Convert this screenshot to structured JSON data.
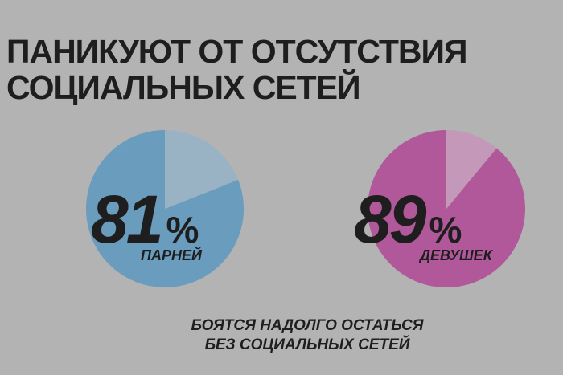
{
  "title": [
    "ПАНИКУЮТ ОТ ОТСУТСТВИЯ",
    "СОЦИАЛЬНЫХ СЕТЕЙ"
  ],
  "caption": [
    "БОЯТСЯ НАДОЛГО ОСТАТЬСЯ",
    "БЕЗ СОЦИАЛЬНЫХ СЕТЕЙ"
  ],
  "chart_data": [
    {
      "type": "pie",
      "label": "ПАРНЕЙ",
      "values": [
        81,
        19
      ],
      "value_labels": [
        "81%",
        null
      ],
      "colors": [
        "#6a9cbd",
        "#9ab3c4"
      ]
    },
    {
      "type": "pie",
      "label": "ДЕВУШЕК",
      "values": [
        89,
        11
      ],
      "value_labels": [
        "89%",
        null
      ],
      "colors": [
        "#b0589a",
        "#c498b8"
      ]
    }
  ]
}
